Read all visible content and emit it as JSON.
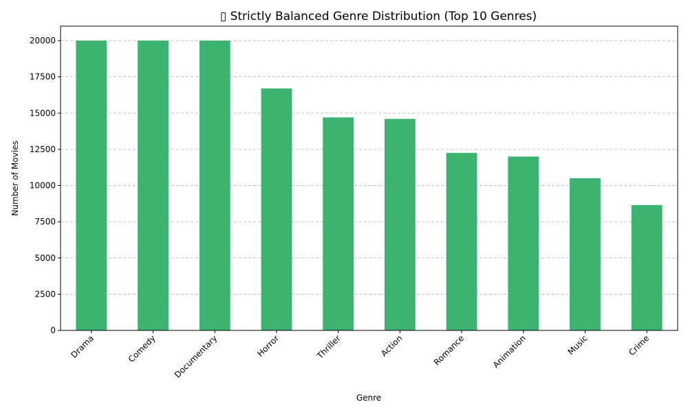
{
  "chart_data": {
    "type": "bar",
    "title": "▯ Strictly Balanced Genre Distribution (Top 10 Genres)",
    "xlabel": "Genre",
    "ylabel": "Number of Movies",
    "categories": [
      "Drama",
      "Comedy",
      "Documentary",
      "Horror",
      "Thriller",
      "Action",
      "Romance",
      "Animation",
      "Music",
      "Crime"
    ],
    "values": [
      20000,
      20000,
      20000,
      16700,
      14700,
      14600,
      12250,
      12000,
      10500,
      8650
    ],
    "ylim": [
      0,
      21000
    ],
    "yticks": [
      0,
      2500,
      5000,
      7500,
      10000,
      12500,
      15000,
      17500,
      20000
    ],
    "grid": "y-dashed",
    "legend": "none",
    "bar_color": "#3cb371"
  }
}
